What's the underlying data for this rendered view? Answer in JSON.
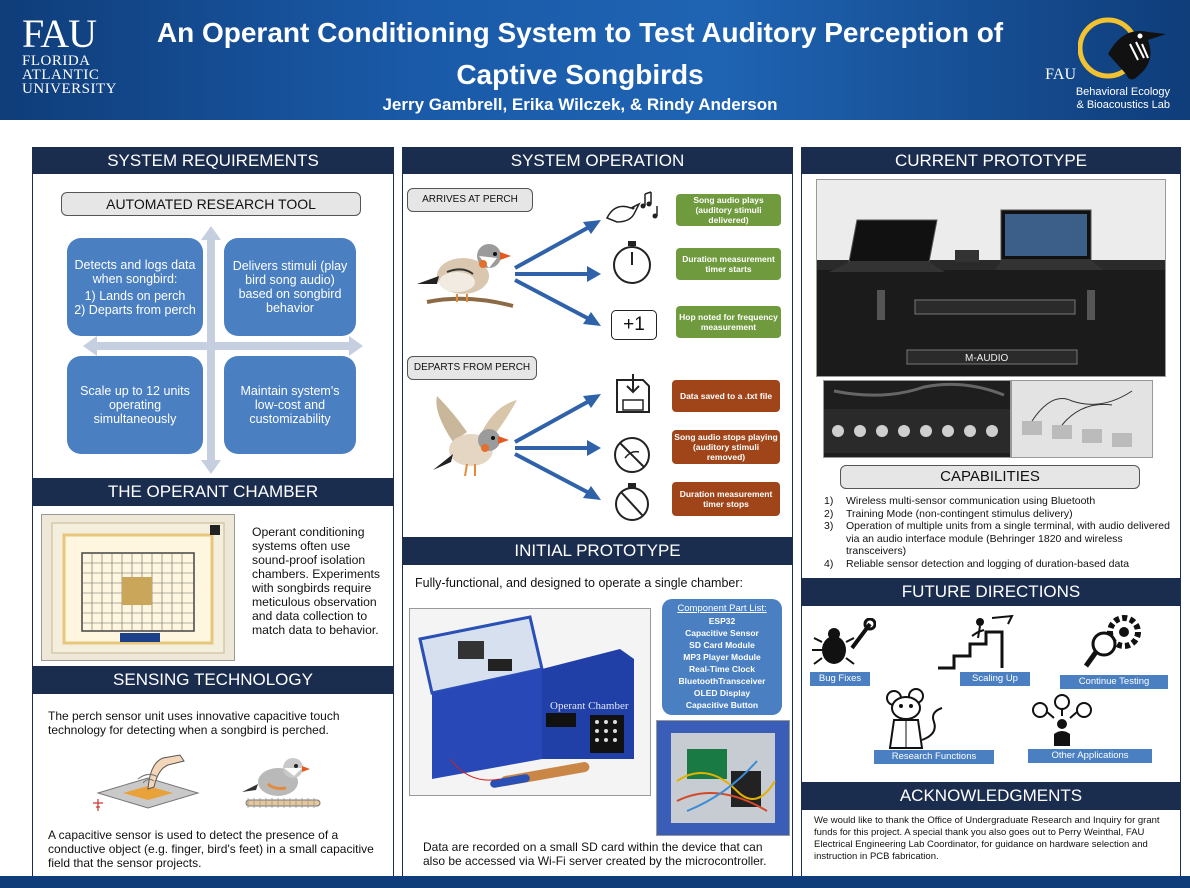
{
  "header": {
    "title_line1": "An Operant Conditioning System to Test Auditory Perception of",
    "title_line2": "Captive Songbirds",
    "authors": "Jerry Gambrell, Erika Wilczek, & Rindy Anderson",
    "fau_logo_big": "FAU",
    "fau_logo_lines": [
      "FLORIDA",
      "ATLANTIC",
      "UNIVERSITY"
    ],
    "lab_logo_fau": "FAU",
    "lab_logo_lines": [
      "Behavioral Ecology",
      "& Bioacoustics Lab"
    ]
  },
  "system_requirements": {
    "title": "SYSTEM REQUIREMENTS",
    "pill": "AUTOMATED RESEARCH TOOL",
    "box1_head": "Detects and logs data when songbird:",
    "box1_items": [
      "1) Lands on perch",
      "2) Departs from perch"
    ],
    "box2": "Delivers stimuli (play bird song audio) based on songbird behavior",
    "box3": "Scale up to 12 units operating simultaneously",
    "box4": "Maintain system's low-cost and customizability"
  },
  "operant_chamber": {
    "title": "THE OPERANT CHAMBER",
    "text": "Operant conditioning systems often use sound-proof isolation chambers. Experiments with songbirds require meticulous observation and data collection to match data to behavior."
  },
  "sensing": {
    "title": "SENSING TECHNOLOGY",
    "text1": "The perch sensor unit uses innovative capacitive touch technology for detecting when a songbird is perched.",
    "text2": "A capacitive sensor is used to detect the presence of a conductive object (e.g. finger, bird's feet) in a small capacitive field that the sensor projects."
  },
  "system_operation": {
    "title": "SYSTEM OPERATION",
    "arrives": "ARRIVES AT PERCH",
    "departs": "DEPARTS FROM PERCH",
    "plus_one": "+1",
    "green": [
      "Song audio plays (auditory stimuli delivered)",
      "Duration measurement timer starts",
      "Hop noted for frequency measurement"
    ],
    "brown": [
      "Data saved to a .txt file",
      "Song audio stops playing (auditory stimuli removed)",
      "Duration measurement timer stops"
    ],
    "colors": {
      "green": "#6f9a3d",
      "brown": "#a0451a"
    }
  },
  "initial_prototype": {
    "title": "INITIAL PROTOTYPE",
    "intro": "Fully-functional, and designed to operate a single chamber:",
    "parts_title": "Component Part List:",
    "parts": [
      "ESP32",
      "Capacitive Sensor",
      "SD Card Module",
      "MP3 Player Module",
      "Real-Time Clock",
      "BluetoothTransceiver",
      "OLED Display",
      "Capacitive Button"
    ],
    "device_label": "Operant Chamber",
    "outro": "Data are recorded on a small SD card within the device that can also be accessed via Wi-Fi server created by the microcontroller."
  },
  "current_prototype": {
    "title": "CURRENT PROTOTYPE",
    "interface_label": "M-AUDIO",
    "capabilities_title": "CAPABILITIES",
    "capabilities": [
      {
        "num": "1)",
        "text": "Wireless multi-sensor communication using Bluetooth"
      },
      {
        "num": "2)",
        "text": "Training Mode (non-contingent stimulus delivery)"
      },
      {
        "num": "3)",
        "text": "Operation of multiple units from a single terminal, with audio delivered via an audio interface module (Behringer 1820 and wireless transceivers)"
      },
      {
        "num": "4)",
        "text": "Reliable sensor detection and logging of duration-based data"
      }
    ]
  },
  "future": {
    "title": "FUTURE DIRECTIONS",
    "labels": [
      "Bug Fixes",
      "Scaling Up",
      "Continue Testing",
      "Research Functions",
      "Other Applications"
    ]
  },
  "acknowledgments": {
    "title": "ACKNOWLEDGMENTS",
    "text": "We would like to thank the Office of Undergraduate Research and Inquiry for grant funds for this project. A special thank you also goes out to Perry Weinthal, FAU Electrical Engineering Lab Coordinator, for guidance on hardware selection and instruction in PCB fabrication."
  }
}
